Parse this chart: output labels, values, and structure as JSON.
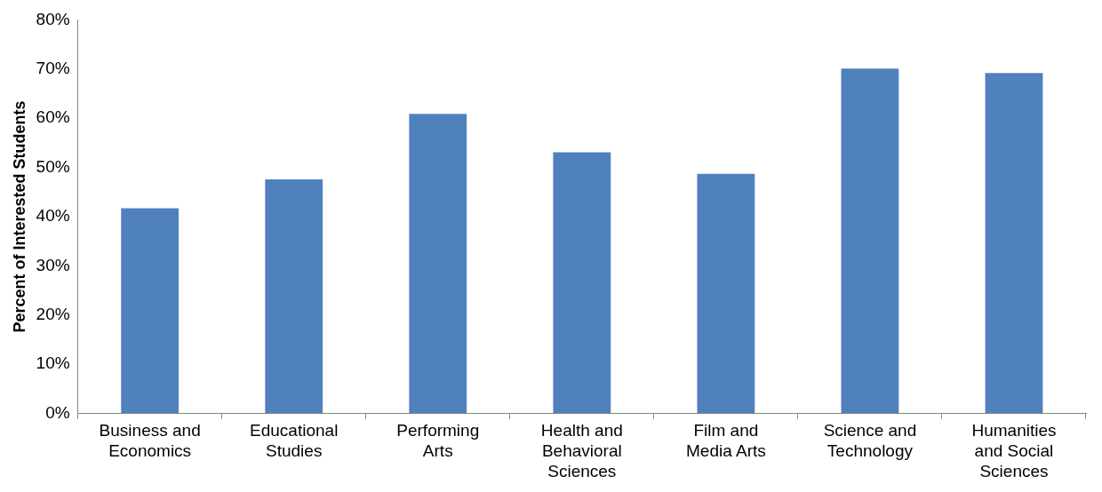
{
  "chart_data": {
    "type": "bar",
    "ylabel": "Percent of Interested Students",
    "categories": [
      "Business and Economics",
      "Educational Studies",
      "Performing Arts",
      "Health and Behavioral Sciences",
      "Film and Media Arts",
      "Science and Technology",
      "Humanities and Social Sciences"
    ],
    "values": [
      41.7,
      47.6,
      60.9,
      53.1,
      48.7,
      70.1,
      69.2
    ],
    "color": "#4f81bd",
    "ylim": [
      0,
      80
    ],
    "yticks": [
      {
        "value": 0,
        "label": "0%"
      },
      {
        "value": 10,
        "label": "10%"
      },
      {
        "value": 20,
        "label": "20%"
      },
      {
        "value": 30,
        "label": "30%"
      },
      {
        "value": 40,
        "label": "40%"
      },
      {
        "value": 50,
        "label": "50%"
      },
      {
        "value": 60,
        "label": "60%"
      },
      {
        "value": 70,
        "label": "70%"
      },
      {
        "value": 80,
        "label": "80%"
      }
    ],
    "grid": false,
    "legend": false
  }
}
